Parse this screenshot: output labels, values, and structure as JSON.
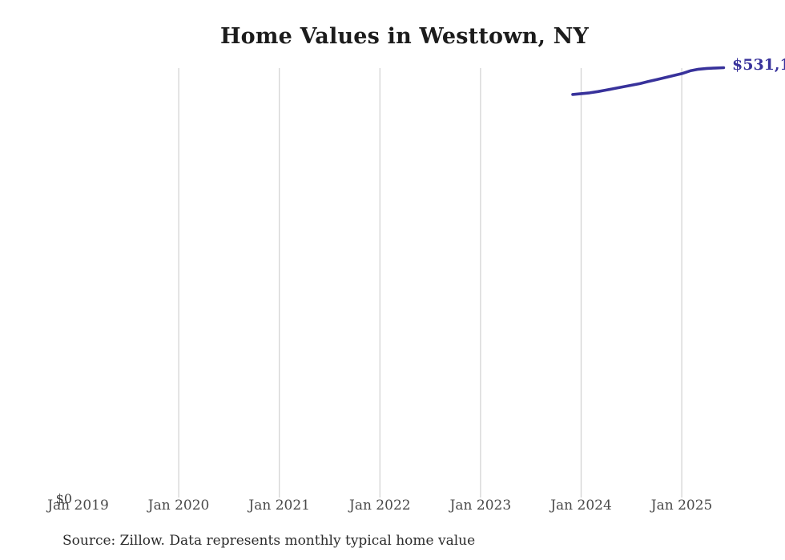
{
  "chart": {
    "title": "Home Values in Westtown, NY",
    "end_label": "$531,1",
    "y_zero_label": "$0",
    "source_note": "Source: Zillow. Data represents monthly typical home value",
    "colors": {
      "line": "#38329b",
      "end_label_text": "#38329b",
      "gridline": "#d4d4d4",
      "title_text": "#1c1c1c",
      "tick_text": "#4a4a4a",
      "source_text": "#2b2b2b",
      "background": "#ffffff"
    }
  },
  "chart_data": {
    "type": "line",
    "title": "Home Values in Westtown, NY",
    "source": "Source: Zillow. Data represents monthly typical home value",
    "x_tick_labels": [
      "Jan 2019",
      "Jan 2020",
      "Jan 2021",
      "Jan 2022",
      "Jan 2023",
      "Jan 2024",
      "Jan 2025"
    ],
    "x_tick_years": [
      2019,
      2020,
      2021,
      2022,
      2023,
      2024,
      2025
    ],
    "gridline_years": [
      2020,
      2021,
      2022,
      2023,
      2024,
      2025
    ],
    "grid": "vertical-only",
    "y_min": 0,
    "y_min_label": "$0",
    "end_value_label_visible": "$531,1",
    "end_value_estimate": 531100,
    "series": [
      {
        "name": "Monthly typical home value",
        "months": [
          "2023-12",
          "2024-01",
          "2024-02",
          "2024-03",
          "2024-04",
          "2024-05",
          "2024-06",
          "2024-07",
          "2024-08",
          "2024-09",
          "2024-10",
          "2024-11",
          "2024-12",
          "2025-01",
          "2025-02",
          "2025-03",
          "2025-04",
          "2025-05",
          "2025-06"
        ],
        "values": [
          498000,
          499000,
          500000,
          501500,
          503400,
          505400,
          507400,
          509400,
          511400,
          513900,
          516300,
          518800,
          521300,
          523800,
          527200,
          529200,
          530200,
          530700,
          531100
        ]
      }
    ]
  }
}
